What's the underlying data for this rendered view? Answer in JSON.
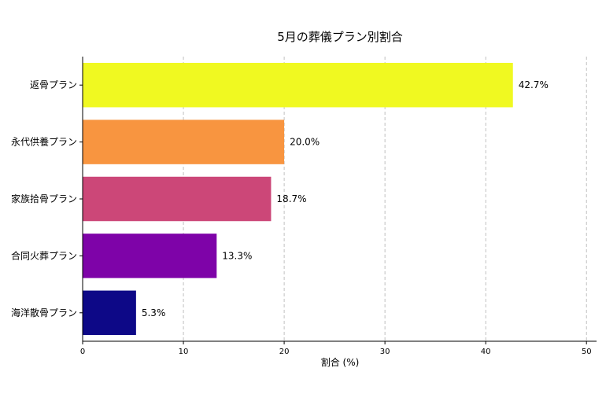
{
  "chart_data": {
    "type": "bar",
    "orientation": "horizontal",
    "title": "5月の葬儀プラン別割合",
    "xlabel": "割合 (%)",
    "ylabel": "",
    "xlim": [
      0,
      51
    ],
    "xticks": [
      0,
      10,
      20,
      30,
      40,
      50
    ],
    "grid": true,
    "categories": [
      "返骨プラン",
      "永代供養プラン",
      "家族拾骨プラン",
      "合同火葬プラン",
      "海洋散骨プラン"
    ],
    "values": [
      42.7,
      20.0,
      18.7,
      13.3,
      5.3
    ],
    "value_labels": [
      "42.7%",
      "20.0%",
      "18.7%",
      "13.3%",
      "5.3%"
    ],
    "colors": [
      "#f0f921",
      "#f89540",
      "#cc4778",
      "#7e03a8",
      "#0d0887"
    ]
  }
}
